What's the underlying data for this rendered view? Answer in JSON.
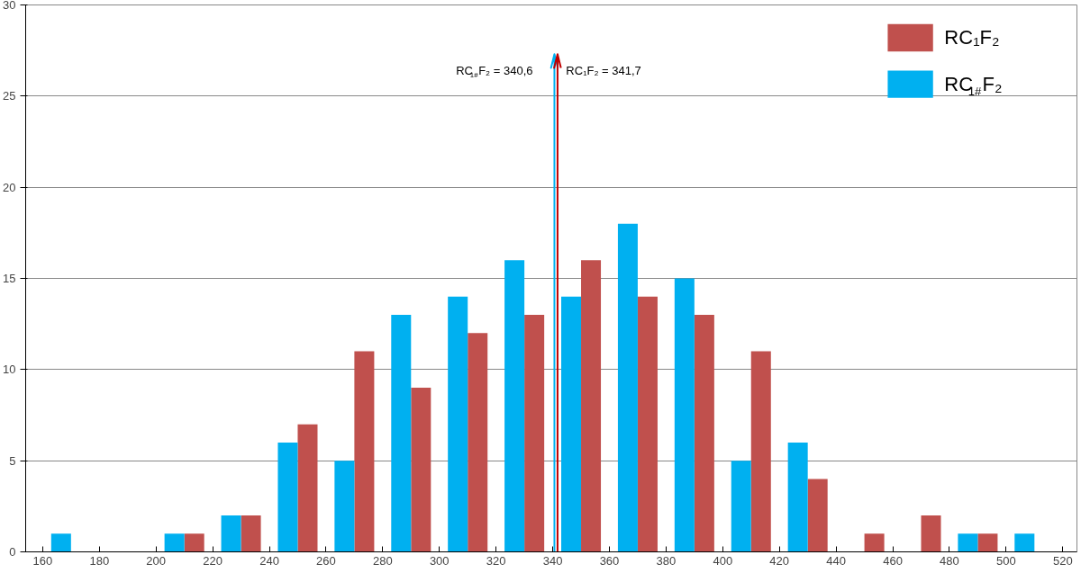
{
  "chart_data": {
    "type": "bar",
    "x": [
      170,
      190,
      210,
      230,
      250,
      270,
      290,
      310,
      330,
      350,
      370,
      390,
      410,
      430,
      450,
      470,
      490,
      510
    ],
    "series": [
      {
        "name": "RC₁F₂",
        "color": "#c0504d",
        "values": [
          0,
          0,
          1,
          2,
          7,
          11,
          9,
          12,
          13,
          16,
          14,
          13,
          11,
          4,
          1,
          2,
          1,
          0
        ]
      },
      {
        "name": "RC$_{1#}$F₂",
        "color": "#00b0f0",
        "values": [
          1,
          0,
          1,
          2,
          6,
          5,
          13,
          14,
          16,
          14,
          18,
          15,
          5,
          6,
          0,
          0,
          1,
          1
        ]
      }
    ],
    "xlim": [
      154,
      525
    ],
    "xticks": [
      160,
      180,
      200,
      220,
      240,
      260,
      280,
      300,
      320,
      340,
      360,
      380,
      400,
      420,
      440,
      460,
      480,
      500,
      520
    ],
    "ylim": [
      0,
      30
    ],
    "yticks": [
      0,
      5,
      10,
      15,
      20,
      25,
      30
    ],
    "grid": "y",
    "legend": "top right",
    "ref_lines": [
      {
        "axis": "x",
        "value": 340.6,
        "label": "RC$_{1#}$F₂ = 340,6",
        "color": "#00b0f0"
      },
      {
        "axis": "x",
        "value": 341.7,
        "label": "RC₁F₂ = 341,7",
        "color": "#c00000"
      }
    ]
  }
}
